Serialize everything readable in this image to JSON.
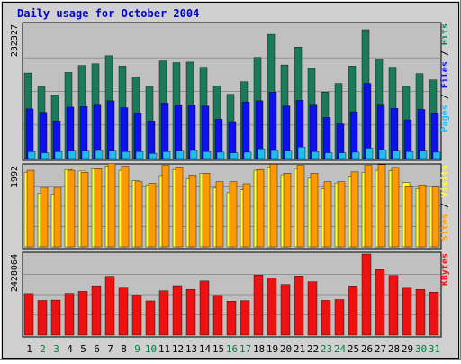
{
  "chart_data": {
    "type": "bar",
    "title": "Daily usage for October 2004",
    "categories": [
      "1",
      "2",
      "3",
      "4",
      "5",
      "6",
      "7",
      "8",
      "9",
      "10",
      "11",
      "12",
      "13",
      "14",
      "15",
      "16",
      "17",
      "18",
      "19",
      "20",
      "21",
      "22",
      "23",
      "24",
      "25",
      "26",
      "27",
      "28",
      "29",
      "30",
      "31"
    ],
    "weekend_categories": [
      "2",
      "3",
      "9",
      "10",
      "16",
      "17",
      "23",
      "24",
      "30",
      "31"
    ],
    "colors": {
      "hits": "#1a7a5a",
      "files": "#1010ee",
      "pages": "#22bbee",
      "visits": "#ffff33",
      "sites": "#ff9900",
      "kbytes": "#ee1111",
      "title": "#0000cc",
      "weekday_label": "#000000",
      "weekend_label": "#008040",
      "panel_bg": "#c0c0c0",
      "frame_bg": "#d0d0d0"
    },
    "panels": [
      {
        "name": "hits-files-pages",
        "ylabel": "232327",
        "ymax": 232327,
        "legend": [
          {
            "text": "Pages",
            "color": "#22bbee"
          },
          {
            "text": " / ",
            "color": "#000000"
          },
          {
            "text": "Files",
            "color": "#1010ee"
          },
          {
            "text": " / ",
            "color": "#000000"
          },
          {
            "text": "Hits",
            "color": "#1a7a5a"
          }
        ],
        "series": [
          {
            "name": "Hits",
            "values": [
              148000,
              124000,
              110000,
              149000,
              161000,
              164000,
              178000,
              160000,
              141000,
              124000,
              169000,
              166000,
              167000,
              158000,
              125000,
              111000,
              133000,
              175000,
              215000,
              162000,
              193000,
              156000,
              115000,
              130000,
              160000,
              223000,
              172000,
              158000,
              124000,
              147000,
              136000
            ]
          },
          {
            "name": "Files",
            "values": [
              86000,
              80000,
              65000,
              89000,
              90000,
              94000,
              100000,
              88000,
              79000,
              65000,
              96000,
              93000,
              93000,
              91000,
              68000,
              64000,
              98000,
              100000,
              115000,
              91000,
              101000,
              94000,
              71000,
              60000,
              81000,
              130000,
              94000,
              87000,
              67000,
              85000,
              79000
            ]
          },
          {
            "name": "Pages",
            "values": [
              12000,
              10000,
              12000,
              13000,
              13000,
              14000,
              13000,
              12000,
              12000,
              9000,
              12000,
              13000,
              14000,
              12000,
              11000,
              10000,
              11000,
              17000,
              14000,
              13000,
              20000,
              12000,
              10000,
              10000,
              11000,
              18000,
              15000,
              13000,
              12000,
              13000,
              11000
            ]
          }
        ]
      },
      {
        "name": "visits-sites",
        "ylabel": "1992",
        "ymax": 1992,
        "legend": [
          {
            "text": "Sites",
            "color": "#ff9900"
          },
          {
            "text": " / ",
            "color": "#000000"
          },
          {
            "text": "Visits",
            "color": "#ffff33"
          }
        ],
        "series": [
          {
            "name": "Visits",
            "values": [
              1830,
              1320,
              1300,
              1900,
              1860,
              1920,
              1980,
              1880,
              1620,
              1520,
              1750,
              1900,
              1670,
              1810,
              1450,
              1330,
              1400,
              1880,
              1960,
              1770,
              1920,
              1690,
              1430,
              1570,
              1740,
              1830,
              1880,
              1870,
              1580,
              1430,
              1470
            ]
          },
          {
            "name": "Sites",
            "values": [
              1880,
              1460,
              1460,
              1880,
              1830,
              1920,
              2040,
              1980,
              1600,
              1560,
              2000,
              1960,
              1760,
              1810,
              1600,
              1600,
              1550,
              1900,
              2030,
              1810,
              2000,
              1810,
              1600,
              1600,
              1840,
              2000,
              2020,
              1950,
              1500,
              1520,
              1490
            ]
          }
        ]
      },
      {
        "name": "kbytes",
        "ylabel": "2428064",
        "ymax": 2428064,
        "legend": [
          {
            "text": "KBytes",
            "color": "#ee1111"
          }
        ],
        "series": [
          {
            "name": "KBytes",
            "values": [
              1244000,
              1039000,
              1050000,
              1250000,
              1310000,
              1480000,
              1762000,
              1411000,
              1200000,
              1026000,
              1330000,
              1484000,
              1371000,
              1623000,
              1190000,
              1020000,
              1034000,
              1800000,
              1708000,
              1517000,
              1771000,
              1601000,
              1040000,
              1065000,
              1474000,
              2428000,
              1960000,
              1787000,
              1406000,
              1367000,
              1290000
            ]
          }
        ]
      }
    ]
  }
}
